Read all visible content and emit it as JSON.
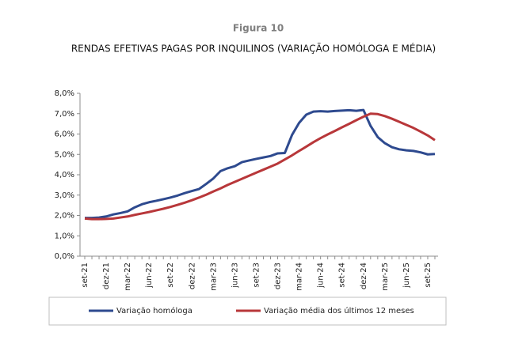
{
  "chart_data": {
    "type": "line",
    "title": "Figura 10",
    "subtitle": "RENDAS EFETIVAS PAGAS POR INQUILINOS (VARIAÇÃO HOMÓLOGA E MÉDIA)",
    "categories": [
      "set-21",
      null,
      null,
      "dez-21",
      null,
      null,
      "mar-22",
      null,
      null,
      "jun-22",
      null,
      null,
      "set-22",
      null,
      null,
      "dez-22",
      null,
      null,
      "mar-23",
      null,
      null,
      "jun-23",
      null,
      null,
      "set-23",
      null,
      null,
      "dez-23",
      null,
      null,
      "mar-24",
      null,
      null,
      "jun-24",
      null,
      null,
      "set-24",
      null,
      null,
      "dez-24",
      null,
      null,
      "mar-25",
      null,
      null,
      "jun-25",
      null,
      null,
      "set-25",
      null
    ],
    "series": [
      {
        "name": "Variação homóloga",
        "color": "#2e4a8f",
        "values": [
          1.88,
          1.88,
          1.9,
          1.95,
          2.05,
          2.12,
          2.2,
          2.4,
          2.55,
          2.65,
          2.72,
          2.8,
          2.88,
          2.98,
          3.1,
          3.2,
          3.3,
          3.55,
          3.82,
          4.18,
          4.32,
          4.42,
          4.62,
          4.7,
          4.78,
          4.85,
          4.92,
          5.05,
          5.07,
          5.95,
          6.55,
          6.95,
          7.1,
          7.12,
          7.1,
          7.13,
          7.15,
          7.17,
          7.14,
          7.18,
          6.4,
          5.85,
          5.55,
          5.35,
          5.25,
          5.2,
          5.17,
          5.1,
          5.0,
          5.02
        ]
      },
      {
        "name": "Variação média dos últimos 12 meses",
        "color": "#b8373a",
        "values": [
          1.85,
          1.82,
          1.82,
          1.83,
          1.85,
          1.9,
          1.95,
          2.03,
          2.1,
          2.17,
          2.25,
          2.33,
          2.42,
          2.52,
          2.63,
          2.75,
          2.88,
          3.02,
          3.18,
          3.33,
          3.5,
          3.65,
          3.8,
          3.95,
          4.1,
          4.25,
          4.4,
          4.55,
          4.75,
          4.95,
          5.17,
          5.38,
          5.6,
          5.8,
          5.98,
          6.15,
          6.33,
          6.5,
          6.68,
          6.85,
          7.0,
          6.98,
          6.88,
          6.75,
          6.6,
          6.45,
          6.3,
          6.12,
          5.93,
          5.7
        ]
      }
    ],
    "ylim": [
      0,
      8
    ],
    "yticks": [
      {
        "value": 0,
        "label": "0,0%"
      },
      {
        "value": 1,
        "label": "1,0%"
      },
      {
        "value": 2,
        "label": "2,0%"
      },
      {
        "value": 3,
        "label": "3,0%"
      },
      {
        "value": 4,
        "label": "4,0%"
      },
      {
        "value": 5,
        "label": "5,0%"
      },
      {
        "value": 6,
        "label": "6,0%"
      },
      {
        "value": 7,
        "label": "7,0%"
      },
      {
        "value": 8,
        "label": "8,0%"
      }
    ],
    "grid": false,
    "legend": "bottom"
  }
}
